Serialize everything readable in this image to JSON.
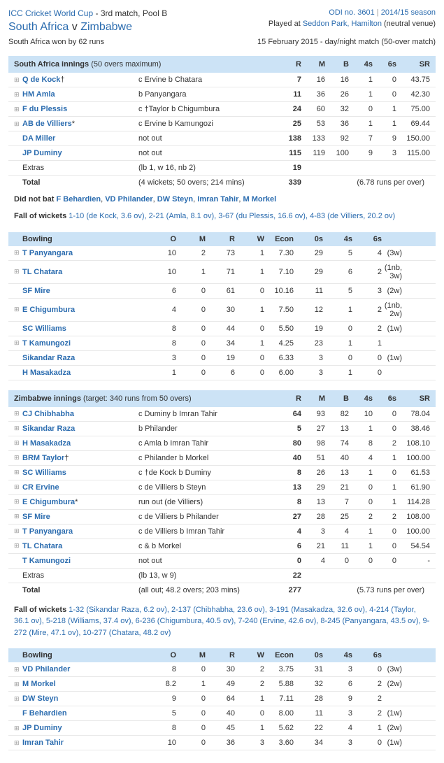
{
  "header": {
    "competition": "ICC Cricket World Cup",
    "match_desc": "3rd match, Pool B",
    "odi_no": "ODI no. 3601",
    "season": "2014/15 season",
    "team1": "South Africa",
    "vs": "v",
    "team2": "Zimbabwe",
    "venue_prefix": "Played at ",
    "venue": "Seddon Park, Hamilton",
    "venue_suffix": " (neutral venue)",
    "result": "South Africa won by 62 runs",
    "date_line": "15 February 2015 - day/night match (50-over match)"
  },
  "colors": {
    "link": "#2b6caf",
    "header_bg": "#cce3f6",
    "border": "#e8e8e8"
  },
  "innings1": {
    "title": "South Africa innings",
    "subtitle": "(50 overs maximum)",
    "cols": [
      "R",
      "M",
      "B",
      "4s",
      "6s",
      "SR"
    ],
    "batting": [
      {
        "exp": true,
        "name": "Q de Kock",
        "suf": "†",
        "how": "c Ervine b Chatara",
        "r": "7",
        "m": "16",
        "b": "16",
        "f": "1",
        "s": "0",
        "sr": "43.75"
      },
      {
        "exp": true,
        "name": "HM Amla",
        "suf": "",
        "how": "b Panyangara",
        "r": "11",
        "m": "36",
        "b": "26",
        "f": "1",
        "s": "0",
        "sr": "42.30"
      },
      {
        "exp": true,
        "name": "F du Plessis",
        "suf": "",
        "how": "c †Taylor b Chigumbura",
        "r": "24",
        "m": "60",
        "b": "32",
        "f": "0",
        "s": "1",
        "sr": "75.00"
      },
      {
        "exp": true,
        "name": "AB de Villiers",
        "suf": "*",
        "how": "c Ervine b Kamungozi",
        "r": "25",
        "m": "53",
        "b": "36",
        "f": "1",
        "s": "1",
        "sr": "69.44"
      },
      {
        "exp": false,
        "name": "DA Miller",
        "suf": "",
        "how": "not out",
        "r": "138",
        "m": "133",
        "b": "92",
        "f": "7",
        "s": "9",
        "sr": "150.00"
      },
      {
        "exp": false,
        "name": "JP Duminy",
        "suf": "",
        "how": "not out",
        "r": "115",
        "m": "119",
        "b": "100",
        "f": "9",
        "s": "3",
        "sr": "115.00"
      }
    ],
    "extras_label": "Extras",
    "extras_detail": "(lb 1, w 16, nb 2)",
    "extras_r": "19",
    "total_label": "Total",
    "total_detail": "(4 wickets; 50 overs; 214 mins)",
    "total_r": "339",
    "total_rr": "(6.78 runs per over)",
    "dnb_label": "Did not bat",
    "dnb": [
      "F Behardien",
      "VD Philander",
      "DW Steyn",
      "Imran Tahir",
      "M Morkel"
    ],
    "fow_label": "Fall of wickets",
    "fow": "1-10 (de Kock, 3.6 ov), 2-21 (Amla, 8.1 ov), 3-67 (du Plessis, 16.6 ov), 4-83 (de Villiers, 20.2 ov)",
    "bowl_title": "Bowling",
    "bowl_cols": [
      "O",
      "M",
      "R",
      "W",
      "Econ",
      "0s",
      "4s",
      "6s"
    ],
    "bowling": [
      {
        "exp": true,
        "name": "T Panyangara",
        "o": "10",
        "m": "2",
        "r": "73",
        "w": "1",
        "e": "7.30",
        "z": "29",
        "f": "5",
        "s": "4",
        "ex": "(3w)"
      },
      {
        "exp": true,
        "name": "TL Chatara",
        "o": "10",
        "m": "1",
        "r": "71",
        "w": "1",
        "e": "7.10",
        "z": "29",
        "f": "6",
        "s": "2",
        "ex": "(1nb, 3w)"
      },
      {
        "exp": false,
        "name": "SF Mire",
        "o": "6",
        "m": "0",
        "r": "61",
        "w": "0",
        "e": "10.16",
        "z": "11",
        "f": "5",
        "s": "3",
        "ex": "(2w)"
      },
      {
        "exp": true,
        "name": "E Chigumbura",
        "o": "4",
        "m": "0",
        "r": "30",
        "w": "1",
        "e": "7.50",
        "z": "12",
        "f": "1",
        "s": "2",
        "ex": "(1nb, 2w)"
      },
      {
        "exp": false,
        "name": "SC Williams",
        "o": "8",
        "m": "0",
        "r": "44",
        "w": "0",
        "e": "5.50",
        "z": "19",
        "f": "0",
        "s": "2",
        "ex": "(1w)"
      },
      {
        "exp": true,
        "name": "T Kamungozi",
        "o": "8",
        "m": "0",
        "r": "34",
        "w": "1",
        "e": "4.25",
        "z": "23",
        "f": "1",
        "s": "1",
        "ex": ""
      },
      {
        "exp": false,
        "name": "Sikandar Raza",
        "o": "3",
        "m": "0",
        "r": "19",
        "w": "0",
        "e": "6.33",
        "z": "3",
        "f": "0",
        "s": "0",
        "ex": "(1w)"
      },
      {
        "exp": false,
        "name": "H Masakadza",
        "o": "1",
        "m": "0",
        "r": "6",
        "w": "0",
        "e": "6.00",
        "z": "3",
        "f": "1",
        "s": "0",
        "ex": ""
      }
    ]
  },
  "innings2": {
    "title": "Zimbabwe innings",
    "subtitle": "(target: 340 runs from 50 overs)",
    "cols": [
      "R",
      "M",
      "B",
      "4s",
      "6s",
      "SR"
    ],
    "batting": [
      {
        "exp": true,
        "name": "CJ Chibhabha",
        "suf": "",
        "how": "c Duminy b Imran Tahir",
        "r": "64",
        "m": "93",
        "b": "82",
        "f": "10",
        "s": "0",
        "sr": "78.04"
      },
      {
        "exp": true,
        "name": "Sikandar Raza",
        "suf": "",
        "how": "b Philander",
        "r": "5",
        "m": "27",
        "b": "13",
        "f": "1",
        "s": "0",
        "sr": "38.46"
      },
      {
        "exp": true,
        "name": "H Masakadza",
        "suf": "",
        "how": "c Amla b Imran Tahir",
        "r": "80",
        "m": "98",
        "b": "74",
        "f": "8",
        "s": "2",
        "sr": "108.10"
      },
      {
        "exp": true,
        "name": "BRM Taylor",
        "suf": "†",
        "how": "c Philander b Morkel",
        "r": "40",
        "m": "51",
        "b": "40",
        "f": "4",
        "s": "1",
        "sr": "100.00"
      },
      {
        "exp": true,
        "name": "SC Williams",
        "suf": "",
        "how": "c †de Kock b Duminy",
        "r": "8",
        "m": "26",
        "b": "13",
        "f": "1",
        "s": "0",
        "sr": "61.53"
      },
      {
        "exp": true,
        "name": "CR Ervine",
        "suf": "",
        "how": "c de Villiers b Steyn",
        "r": "13",
        "m": "29",
        "b": "21",
        "f": "0",
        "s": "1",
        "sr": "61.90"
      },
      {
        "exp": true,
        "name": "E Chigumbura",
        "suf": "*",
        "how": "run out (de Villiers)",
        "r": "8",
        "m": "13",
        "b": "7",
        "f": "0",
        "s": "1",
        "sr": "114.28"
      },
      {
        "exp": true,
        "name": "SF Mire",
        "suf": "",
        "how": "c de Villiers b Philander",
        "r": "27",
        "m": "28",
        "b": "25",
        "f": "2",
        "s": "2",
        "sr": "108.00"
      },
      {
        "exp": true,
        "name": "T Panyangara",
        "suf": "",
        "how": "c de Villiers b Imran Tahir",
        "r": "4",
        "m": "3",
        "b": "4",
        "f": "1",
        "s": "0",
        "sr": "100.00"
      },
      {
        "exp": true,
        "name": "TL Chatara",
        "suf": "",
        "how": "c & b Morkel",
        "r": "6",
        "m": "21",
        "b": "11",
        "f": "1",
        "s": "0",
        "sr": "54.54"
      },
      {
        "exp": false,
        "name": "T Kamungozi",
        "suf": "",
        "how": "not out",
        "r": "0",
        "m": "4",
        "b": "0",
        "f": "0",
        "s": "0",
        "sr": "-"
      }
    ],
    "extras_label": "Extras",
    "extras_detail": "(lb 13, w 9)",
    "extras_r": "22",
    "total_label": "Total",
    "total_detail": "(all out; 48.2 overs; 203 mins)",
    "total_r": "277",
    "total_rr": "(5.73 runs per over)",
    "fow_label": "Fall of wickets",
    "fow": "1-32 (Sikandar Raza, 6.2 ov), 2-137 (Chibhabha, 23.6 ov), 3-191 (Masakadza, 32.6 ov), 4-214 (Taylor, 36.1 ov), 5-218 (Williams, 37.4 ov), 6-236 (Chigumbura, 40.5 ov), 7-240 (Ervine, 42.6 ov), 8-245 (Panyangara, 43.5 ov), 9-272 (Mire, 47.1 ov), 10-277 (Chatara, 48.2 ov)",
    "bowl_title": "Bowling",
    "bowl_cols": [
      "O",
      "M",
      "R",
      "W",
      "Econ",
      "0s",
      "4s",
      "6s"
    ],
    "bowling": [
      {
        "exp": true,
        "name": "VD Philander",
        "o": "8",
        "m": "0",
        "r": "30",
        "w": "2",
        "e": "3.75",
        "z": "31",
        "f": "3",
        "s": "0",
        "ex": "(3w)"
      },
      {
        "exp": true,
        "name": "M Morkel",
        "o": "8.2",
        "m": "1",
        "r": "49",
        "w": "2",
        "e": "5.88",
        "z": "32",
        "f": "6",
        "s": "2",
        "ex": "(2w)"
      },
      {
        "exp": true,
        "name": "DW Steyn",
        "o": "9",
        "m": "0",
        "r": "64",
        "w": "1",
        "e": "7.11",
        "z": "28",
        "f": "9",
        "s": "2",
        "ex": ""
      },
      {
        "exp": false,
        "name": "F Behardien",
        "o": "5",
        "m": "0",
        "r": "40",
        "w": "0",
        "e": "8.00",
        "z": "11",
        "f": "3",
        "s": "2",
        "ex": "(1w)"
      },
      {
        "exp": true,
        "name": "JP Duminy",
        "o": "8",
        "m": "0",
        "r": "45",
        "w": "1",
        "e": "5.62",
        "z": "22",
        "f": "4",
        "s": "1",
        "ex": "(2w)"
      },
      {
        "exp": true,
        "name": "Imran Tahir",
        "o": "10",
        "m": "0",
        "r": "36",
        "w": "3",
        "e": "3.60",
        "z": "34",
        "f": "3",
        "s": "0",
        "ex": "(1w)"
      }
    ]
  }
}
